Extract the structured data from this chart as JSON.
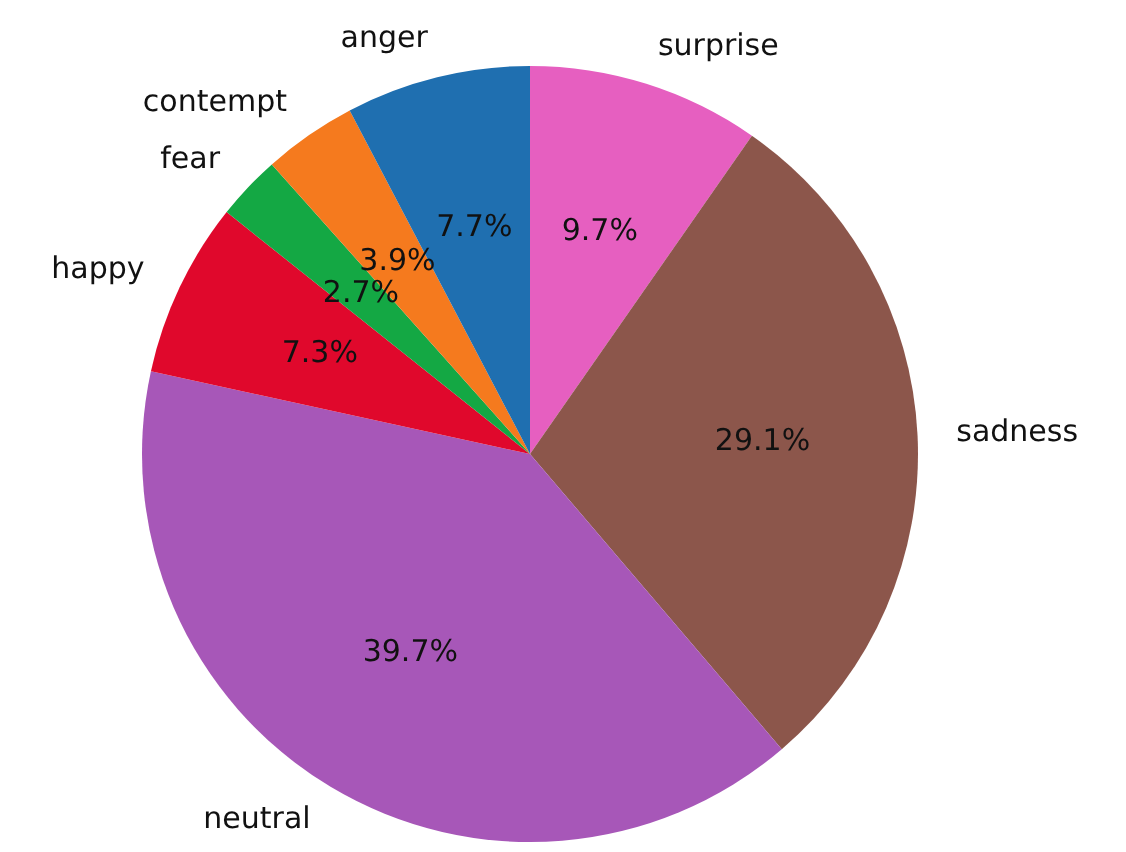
{
  "chart_data": {
    "type": "pie",
    "categories": [
      "anger",
      "contempt",
      "fear",
      "happy",
      "neutral",
      "sadness",
      "surprise"
    ],
    "values": [
      7.7,
      3.9,
      2.7,
      7.3,
      39.7,
      29.1,
      9.7
    ],
    "colors": [
      "#1f6fb0",
      "#f57a1e",
      "#14a844",
      "#e0082c",
      "#a757b8",
      "#8c564b",
      "#e65fc0"
    ],
    "value_labels": [
      "7.7%",
      "3.9%",
      "2.7%",
      "7.3%",
      "39.7%",
      "29.1%",
      "9.7%"
    ],
    "legend": false
  }
}
